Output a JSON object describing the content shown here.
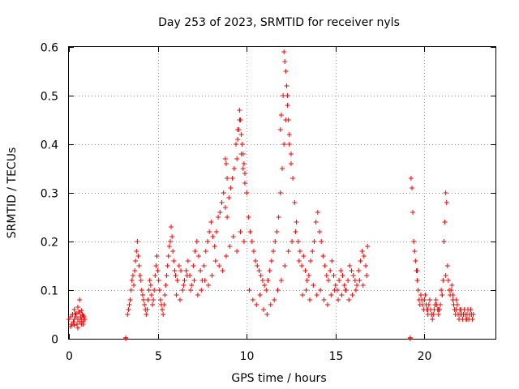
{
  "chart_data": {
    "type": "scatter",
    "title": "Day 253 of 2023, SRMTID for receiver nyls",
    "xlabel": "GPS time / hours",
    "ylabel": "SRMTID / TECUs",
    "xlim": [
      0,
      24
    ],
    "ylim": [
      0,
      0.6
    ],
    "xticks": [
      0,
      5,
      10,
      15,
      20
    ],
    "xtick_labels": [
      "0",
      "5",
      "10",
      "15",
      "20"
    ],
    "yticks": [
      0,
      0.1,
      0.2,
      0.3,
      0.4,
      0.5,
      0.6
    ],
    "ytick_labels": [
      "0",
      "0.1",
      "0.2",
      "0.3",
      "0.4",
      "0.5",
      "0.6"
    ],
    "grid": true,
    "marker": "+",
    "color": "#ff0000",
    "series": [
      {
        "name": "SRMTID",
        "x": [
          0.0,
          0.1,
          0.15,
          0.2,
          0.25,
          0.3,
          0.35,
          0.4,
          0.45,
          0.5,
          0.55,
          0.6,
          0.65,
          0.7,
          0.75,
          0.8,
          0.85,
          0.9,
          0.1,
          0.2,
          0.3,
          0.4,
          0.5,
          0.6,
          0.7,
          0.8,
          0.3,
          0.5,
          0.6,
          0.7,
          0.8,
          3.2,
          3.2,
          3.3,
          3.35,
          3.4,
          3.45,
          3.5,
          3.55,
          3.6,
          3.65,
          3.7,
          3.75,
          3.8,
          3.85,
          3.9,
          3.95,
          4.0,
          4.05,
          4.1,
          4.15,
          4.2,
          4.25,
          4.3,
          4.35,
          4.4,
          4.45,
          4.5,
          4.55,
          4.6,
          4.65,
          4.7,
          4.75,
          4.8,
          4.85,
          4.9,
          4.95,
          5.0,
          5.05,
          5.1,
          5.15,
          5.2,
          5.25,
          5.3,
          5.35,
          5.4,
          5.45,
          5.5,
          5.55,
          5.6,
          5.65,
          5.7,
          5.75,
          5.8,
          5.85,
          5.9,
          5.95,
          6.0,
          6.1,
          6.2,
          6.3,
          6.4,
          6.5,
          6.6,
          6.7,
          6.8,
          6.9,
          7.0,
          7.1,
          7.2,
          7.3,
          7.4,
          7.5,
          7.6,
          7.7,
          7.8,
          7.9,
          8.0,
          8.1,
          8.2,
          8.3,
          8.4,
          8.5,
          8.6,
          8.7,
          8.8,
          8.9,
          9.0,
          9.1,
          9.2,
          9.3,
          9.4,
          9.5,
          9.6,
          9.7,
          9.8,
          9.9,
          10.0,
          6.05,
          6.25,
          6.45,
          6.65,
          6.85,
          7.05,
          7.25,
          7.45,
          7.65,
          7.85,
          8.05,
          8.25,
          8.45,
          8.65,
          8.85,
          9.05,
          9.25,
          9.45,
          9.65,
          9.85,
          10.1,
          10.2,
          10.3,
          10.4,
          10.5,
          10.6,
          10.7,
          10.8,
          10.9,
          11.0,
          11.1,
          11.2,
          11.3,
          11.4,
          11.5,
          11.6,
          11.7,
          11.8,
          11.9,
          12.0,
          12.1,
          12.2,
          12.3,
          12.4,
          12.5,
          12.6,
          12.7,
          12.8,
          12.9,
          13.0,
          10.15,
          10.35,
          10.55,
          10.75,
          10.95,
          11.15,
          11.35,
          11.55,
          11.75,
          11.95,
          12.15,
          12.35,
          12.55,
          12.75,
          12.95,
          13.1,
          13.2,
          13.3,
          13.4,
          13.5,
          13.6,
          13.7,
          13.8,
          13.9,
          14.0,
          14.1,
          14.2,
          14.3,
          14.4,
          14.5,
          14.6,
          14.7,
          14.8,
          14.9,
          15.0,
          15.1,
          15.2,
          15.3,
          15.4,
          15.5,
          15.6,
          15.7,
          15.8,
          15.9,
          16.0,
          16.1,
          16.2,
          16.3,
          16.4,
          16.5,
          16.6,
          16.7,
          16.8,
          13.15,
          13.35,
          13.55,
          13.75,
          13.95,
          14.15,
          14.35,
          14.55,
          14.75,
          14.95,
          15.15,
          15.35,
          15.55,
          15.75,
          15.95,
          16.15,
          16.35,
          16.55,
          16.75,
          9.6,
          9.65,
          9.7,
          9.75,
          9.8,
          9.55,
          9.5,
          9.45,
          9.85,
          9.9,
          8.8,
          8.85,
          8.9,
          12.1,
          12.15,
          12.2,
          12.25,
          12.3,
          12.05,
          12.35,
          11.9,
          11.95,
          12.4,
          12.5,
          19.2,
          19.2,
          19.25,
          19.3,
          19.35,
          19.4,
          19.45,
          19.5,
          19.55,
          19.6,
          19.65,
          19.7,
          19.75,
          19.8,
          19.85,
          19.9,
          19.95,
          20.0,
          20.05,
          20.1,
          20.15,
          20.2,
          20.25,
          20.3,
          20.35,
          20.4,
          20.45,
          20.5,
          20.55,
          20.6,
          20.65,
          20.7,
          20.75,
          20.8,
          20.85,
          20.9,
          20.95,
          21.0,
          21.05,
          21.1,
          21.15,
          21.2,
          21.25,
          21.3,
          21.35,
          21.4,
          21.45,
          21.5,
          21.55,
          21.6,
          21.65,
          21.7,
          21.75,
          21.8,
          21.85,
          21.9,
          21.95,
          22.0,
          22.05,
          22.1,
          22.15,
          22.2,
          22.25,
          22.3,
          22.35,
          22.4,
          22.45,
          22.5,
          22.55,
          22.6,
          22.65,
          22.7,
          22.75,
          19.6,
          19.8,
          20.0,
          20.2,
          20.4,
          20.6,
          20.8,
          21.0,
          21.2,
          21.4,
          21.6,
          21.8,
          22.0,
          22.2,
          22.4,
          22.6
        ],
        "y": [
          0.04,
          0.045,
          0.03,
          0.05,
          0.035,
          0.04,
          0.05,
          0.045,
          0.03,
          0.04,
          0.055,
          0.035,
          0.045,
          0.04,
          0.05,
          0.035,
          0.045,
          0.04,
          0.025,
          0.05,
          0.028,
          0.052,
          0.022,
          0.055,
          0.03,
          0.048,
          0.06,
          0.065,
          0.08,
          0.058,
          0.03,
          0.0,
          0.002,
          0.05,
          0.06,
          0.07,
          0.08,
          0.1,
          0.12,
          0.13,
          0.11,
          0.14,
          0.16,
          0.18,
          0.2,
          0.17,
          0.15,
          0.13,
          0.12,
          0.1,
          0.09,
          0.08,
          0.07,
          0.06,
          0.05,
          0.06,
          0.08,
          0.1,
          0.12,
          0.11,
          0.09,
          0.07,
          0.08,
          0.1,
          0.13,
          0.15,
          0.17,
          0.14,
          0.12,
          0.1,
          0.08,
          0.07,
          0.06,
          0.05,
          0.07,
          0.09,
          0.11,
          0.13,
          0.15,
          0.17,
          0.19,
          0.2,
          0.23,
          0.21,
          0.18,
          0.16,
          0.14,
          0.13,
          0.12,
          0.15,
          0.14,
          0.1,
          0.12,
          0.14,
          0.16,
          0.13,
          0.11,
          0.15,
          0.18,
          0.2,
          0.17,
          0.14,
          0.12,
          0.15,
          0.18,
          0.2,
          0.22,
          0.24,
          0.21,
          0.19,
          0.22,
          0.25,
          0.26,
          0.28,
          0.3,
          0.27,
          0.25,
          0.29,
          0.31,
          0.33,
          0.35,
          0.4,
          0.43,
          0.45,
          0.38,
          0.35,
          0.32,
          0.3,
          0.09,
          0.08,
          0.11,
          0.13,
          0.1,
          0.12,
          0.09,
          0.1,
          0.12,
          0.11,
          0.13,
          0.16,
          0.15,
          0.14,
          0.17,
          0.19,
          0.21,
          0.18,
          0.22,
          0.2,
          0.25,
          0.22,
          0.2,
          0.18,
          0.16,
          0.15,
          0.14,
          0.13,
          0.12,
          0.11,
          0.1,
          0.12,
          0.14,
          0.16,
          0.18,
          0.2,
          0.22,
          0.25,
          0.3,
          0.35,
          0.4,
          0.45,
          0.5,
          0.42,
          0.38,
          0.33,
          0.28,
          0.24,
          0.2,
          0.18,
          0.1,
          0.08,
          0.07,
          0.09,
          0.06,
          0.05,
          0.07,
          0.08,
          0.1,
          0.12,
          0.15,
          0.18,
          0.2,
          0.22,
          0.16,
          0.15,
          0.17,
          0.14,
          0.12,
          0.13,
          0.16,
          0.18,
          0.2,
          0.24,
          0.26,
          0.22,
          0.2,
          0.17,
          0.15,
          0.13,
          0.12,
          0.14,
          0.16,
          0.13,
          0.11,
          0.1,
          0.12,
          0.14,
          0.13,
          0.11,
          0.1,
          0.12,
          0.15,
          0.14,
          0.13,
          0.12,
          0.11,
          0.14,
          0.16,
          0.18,
          0.17,
          0.15,
          0.19,
          0.09,
          0.1,
          0.08,
          0.11,
          0.09,
          0.1,
          0.08,
          0.07,
          0.09,
          0.1,
          0.08,
          0.09,
          0.1,
          0.08,
          0.09,
          0.1,
          0.12,
          0.11,
          0.13,
          0.47,
          0.45,
          0.42,
          0.4,
          0.38,
          0.43,
          0.41,
          0.37,
          0.36,
          0.34,
          0.37,
          0.36,
          0.33,
          0.59,
          0.57,
          0.55,
          0.52,
          0.48,
          0.5,
          0.45,
          0.43,
          0.46,
          0.4,
          0.36,
          0.0,
          0.002,
          0.33,
          0.31,
          0.26,
          0.2,
          0.18,
          0.16,
          0.14,
          0.12,
          0.1,
          0.08,
          0.07,
          0.09,
          0.08,
          0.07,
          0.06,
          0.08,
          0.09,
          0.07,
          0.06,
          0.05,
          0.07,
          0.08,
          0.06,
          0.05,
          0.04,
          0.05,
          0.06,
          0.07,
          0.08,
          0.07,
          0.06,
          0.05,
          0.06,
          0.07,
          0.1,
          0.09,
          0.12,
          0.2,
          0.24,
          0.3,
          0.28,
          0.15,
          0.12,
          0.1,
          0.09,
          0.1,
          0.11,
          0.08,
          0.07,
          0.06,
          0.05,
          0.06,
          0.07,
          0.05,
          0.04,
          0.05,
          0.06,
          0.05,
          0.04,
          0.05,
          0.06,
          0.05,
          0.04,
          0.05,
          0.06,
          0.04,
          0.05,
          0.06,
          0.05,
          0.04,
          0.05,
          0.14,
          0.09,
          0.08,
          0.06,
          0.05,
          0.07,
          0.06,
          0.09,
          0.13,
          0.1,
          0.09,
          0.08,
          0.06,
          0.05,
          0.04,
          0.06
        ]
      }
    ]
  }
}
